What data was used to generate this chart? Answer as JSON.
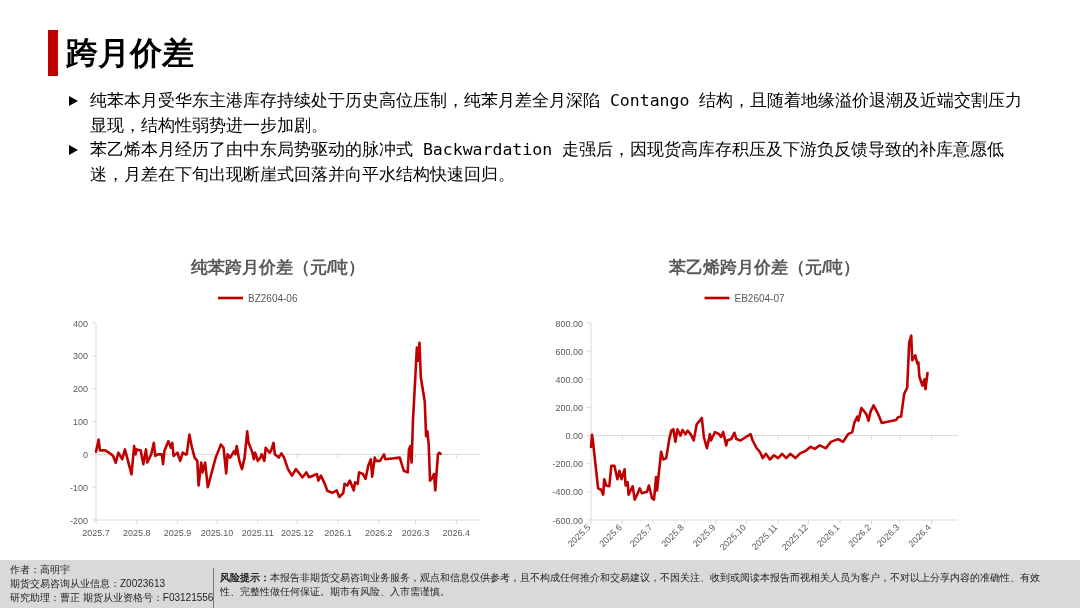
{
  "chart_data": [
    {
      "type": "other",
      "title": "跨月价差",
      "annotations": [
        "纯苯本月受华东主港库存持续处于历史高位压制，纯苯月差全月深陷 Contango 结构，且随着地缘溢价退潮及近端交割压力显现，结构性弱势进一步加剧。",
        "苯乙烯本月经历了由中东局势驱动的脉冲式 Backwardation 走强后，因现货高库存积压及下游负反馈导致的补库意愿低迷，月差在下旬出现断崖式回落并向平水结构快速回归。"
      ]
    },
    {
      "type": "line",
      "title": "纯苯跨月价差（元/吨）",
      "legend": "top",
      "marker": "none",
      "line_style": "solid",
      "x": [
        "2025-07-01",
        "2025-07-03",
        "2025-07-04",
        "2025-07-08",
        "2025-07-12",
        "2025-07-14",
        "2025-07-16",
        "2025-07-18",
        "2025-07-21",
        "2025-07-23",
        "2025-07-28",
        "2025-07-30",
        "2025-07-31",
        "2025-08-01",
        "2025-08-04",
        "2025-08-06",
        "2025-08-08",
        "2025-08-09",
        "2025-08-12",
        "2025-08-14",
        "2025-08-15",
        "2025-08-17",
        "2025-08-20",
        "2025-08-21",
        "2025-08-22",
        "2025-08-25",
        "2025-08-27",
        "2025-08-28",
        "2025-08-29",
        "2025-09-01",
        "2025-09-03",
        "2025-09-05",
        "2025-09-07",
        "2025-09-08",
        "2025-09-10",
        "2025-09-12",
        "2025-09-14",
        "2025-09-16",
        "2025-09-17",
        "2025-09-19",
        "2025-09-20",
        "2025-09-22",
        "2025-09-24",
        "2025-09-27",
        "2025-09-30",
        "2025-10-04",
        "2025-10-06",
        "2025-10-08",
        "2025-10-09",
        "2025-10-11",
        "2025-10-14",
        "2025-10-15",
        "2025-10-16",
        "2025-10-18",
        "2025-10-20",
        "2025-10-22",
        "2025-10-24",
        "2025-10-25",
        "2025-10-28",
        "2025-10-29",
        "2025-10-30",
        "2025-11-01",
        "2025-11-03",
        "2025-11-04",
        "2025-11-06",
        "2025-11-07",
        "2025-11-10",
        "2025-11-11",
        "2025-11-13",
        "2025-11-14",
        "2025-11-17",
        "2025-11-19",
        "2025-11-21",
        "2025-11-24",
        "2025-11-27",
        "2025-11-30",
        "2025-12-03",
        "2025-12-05",
        "2025-12-08",
        "2025-12-10",
        "2025-12-13",
        "2025-12-16",
        "2025-12-17",
        "2025-12-19",
        "2025-12-22",
        "2025-12-24",
        "2025-12-28",
        "2025-12-31",
        "2026-01-02",
        "2026-01-05",
        "2026-01-06",
        "2026-01-08",
        "2026-01-10",
        "2026-01-13",
        "2026-01-14",
        "2026-01-16",
        "2026-01-17",
        "2026-01-20",
        "2026-01-22",
        "2026-01-24",
        "2026-01-26",
        "2026-01-27",
        "2026-01-29",
        "2026-01-30",
        "2026-02-02",
        "2026-02-05",
        "2026-02-06",
        "2026-02-17",
        "2026-02-20",
        "2026-02-23",
        "2026-02-24",
        "2026-02-25",
        "2026-02-26",
        "2026-02-27",
        "2026-03-02",
        "2026-03-03",
        "2026-03-04",
        "2026-03-05",
        "2026-03-08",
        "2026-03-09",
        "2026-03-10",
        "2026-03-11",
        "2026-03-12",
        "2026-03-14",
        "2026-03-15",
        "2026-03-16",
        "2026-03-18",
        "2026-03-19",
        "2026-03-20"
      ],
      "series": [
        {
          "name": "BZ2604-06",
          "color": "#c00000",
          "values": [
            8,
            45,
            12,
            12,
            2,
            -5,
            -26,
            5,
            -15,
            15,
            -61,
            25,
            0,
            15,
            12,
            -30,
            15,
            -25,
            0,
            35,
            -5,
            0,
            0,
            -30,
            10,
            40,
            20,
            35,
            -5,
            5,
            -20,
            5,
            0,
            0,
            60,
            20,
            -10,
            -20,
            -95,
            -25,
            -55,
            -25,
            -100,
            -55,
            -10,
            30,
            20,
            -58,
            0,
            -10,
            10,
            0,
            25,
            -20,
            -45,
            -10,
            70,
            35,
            5,
            -15,
            5,
            -20,
            -10,
            0,
            -20,
            20,
            5,
            10,
            35,
            0,
            -10,
            3,
            -10,
            -45,
            -65,
            -45,
            -60,
            -70,
            -55,
            -70,
            -65,
            -60,
            -80,
            -65,
            -90,
            -112,
            -117,
            -110,
            -130,
            -118,
            -90,
            -95,
            -80,
            -110,
            -85,
            -90,
            -55,
            -60,
            -75,
            -35,
            -15,
            -68,
            -10,
            -20,
            -20,
            0,
            -15,
            -10,
            -50,
            -55,
            15,
            25,
            -25,
            100,
            325,
            285,
            340,
            235,
            160,
            55,
            70,
            30,
            -80,
            -70,
            -60,
            -110,
            0,
            5,
            2
          ]
        }
      ],
      "xlim": [
        "2025-07-01",
        "2026-04-19"
      ],
      "xticks": [
        {
          "value": "2025-07-01",
          "label": "2025.7"
        },
        {
          "value": "2025-08-01",
          "label": "2025.8"
        },
        {
          "value": "2025-09-01",
          "label": "2025.9"
        },
        {
          "value": "2025-10-01",
          "label": "2025.10"
        },
        {
          "value": "2025-11-01",
          "label": "2025.11"
        },
        {
          "value": "2025-12-01",
          "label": "2025.12"
        },
        {
          "value": "2026-01-01",
          "label": "2026.1"
        },
        {
          "value": "2026-02-01",
          "label": "2026.2"
        },
        {
          "value": "2026-03-01",
          "label": "2026.3"
        },
        {
          "value": "2026-04-01",
          "label": "2026.4"
        }
      ],
      "ylim": [
        -200,
        400
      ],
      "yticks": [
        -200,
        -100,
        0,
        100,
        200,
        300,
        400
      ]
    },
    {
      "type": "line",
      "title": "苯乙烯跨月价差（元/吨）",
      "legend": "top",
      "marker": "none",
      "line_style": "solid",
      "x": [
        "2025-05-01",
        "2025-05-02",
        "2025-05-03",
        "2025-05-05",
        "2025-05-08",
        "2025-05-11",
        "2025-05-13",
        "2025-05-14",
        "2025-05-16",
        "2025-05-19",
        "2025-05-21",
        "2025-05-24",
        "2025-05-27",
        "2025-05-29",
        "2025-05-31",
        "2025-06-03",
        "2025-06-04",
        "2025-06-06",
        "2025-06-07",
        "2025-06-11",
        "2025-06-13",
        "2025-06-16",
        "2025-06-18",
        "2025-06-20",
        "2025-06-25",
        "2025-06-27",
        "2025-06-30",
        "2025-07-02",
        "2025-07-04",
        "2025-07-05",
        "2025-07-07",
        "2025-07-09",
        "2025-07-11",
        "2025-07-14",
        "2025-07-17",
        "2025-07-19",
        "2025-07-21",
        "2025-07-23",
        "2025-07-25",
        "2025-07-28",
        "2025-07-30",
        "2025-08-02",
        "2025-08-04",
        "2025-08-07",
        "2025-08-10",
        "2025-08-13",
        "2025-08-18",
        "2025-08-20",
        "2025-08-23",
        "2025-08-26",
        "2025-08-27",
        "2025-08-31",
        "2025-09-04",
        "2025-09-06",
        "2025-09-08",
        "2025-09-11",
        "2025-09-12",
        "2025-09-16",
        "2025-09-19",
        "2025-09-21",
        "2025-09-25",
        "2025-10-05",
        "2025-10-07",
        "2025-10-11",
        "2025-10-14",
        "2025-10-17",
        "2025-10-20",
        "2025-10-24",
        "2025-10-28",
        "2025-11-01",
        "2025-11-05",
        "2025-11-09",
        "2025-11-13",
        "2025-11-18",
        "2025-11-23",
        "2025-11-28",
        "2025-12-03",
        "2025-12-07",
        "2025-12-12",
        "2025-12-15",
        "2025-12-18",
        "2025-12-23",
        "2025-12-30",
        "2026-01-04",
        "2026-01-09",
        "2026-01-13",
        "2026-01-15",
        "2026-01-18",
        "2026-01-19",
        "2026-01-22",
        "2026-01-25",
        "2026-01-27",
        "2026-01-29",
        "2026-01-31",
        "2026-02-03",
        "2026-02-07",
        "2026-02-11",
        "2026-02-25",
        "2026-02-27",
        "2026-03-02",
        "2026-03-05",
        "2026-03-08",
        "2026-03-10",
        "2026-03-12",
        "2026-03-13",
        "2026-03-16",
        "2026-03-18",
        "2026-03-19",
        "2026-03-20",
        "2026-03-23",
        "2026-03-25",
        "2026-03-26",
        "2026-03-28"
      ],
      "series": [
        {
          "name": "EB2604-07",
          "color": "#c00000",
          "values": [
            -80,
            5,
            -45,
            -180,
            -375,
            -385,
            -420,
            -310,
            -355,
            -360,
            -215,
            -215,
            -310,
            -250,
            -310,
            -240,
            -355,
            -330,
            -420,
            -360,
            -455,
            -410,
            -375,
            -410,
            -400,
            -355,
            -445,
            -455,
            -295,
            -390,
            -250,
            -115,
            -170,
            -160,
            -25,
            35,
            45,
            -45,
            45,
            0,
            40,
            10,
            35,
            10,
            -35,
            80,
            125,
            -10,
            -90,
            10,
            -35,
            25,
            10,
            -10,
            25,
            -70,
            -35,
            -25,
            20,
            -25,
            -35,
            10,
            -35,
            -90,
            -115,
            -160,
            -130,
            -170,
            -140,
            -160,
            -130,
            -160,
            -130,
            -160,
            -125,
            -110,
            -80,
            -95,
            -70,
            -80,
            -90,
            -45,
            -25,
            -45,
            10,
            25,
            90,
            135,
            105,
            195,
            170,
            150,
            105,
            170,
            215,
            160,
            90,
            110,
            130,
            135,
            295,
            340,
            660,
            710,
            535,
            570,
            510,
            520,
            420,
            355,
            400,
            330,
            445
          ]
        }
      ],
      "xlim": [
        "2025-05-01",
        "2026-04-27"
      ],
      "xticks": [
        {
          "value": "2025-05-01",
          "label": "2025.5"
        },
        {
          "value": "2025-06-01",
          "label": "2025.6"
        },
        {
          "value": "2025-07-01",
          "label": "2025.7"
        },
        {
          "value": "2025-08-01",
          "label": "2025.8"
        },
        {
          "value": "2025-09-01",
          "label": "2025.9"
        },
        {
          "value": "2025-10-01",
          "label": "2025.10"
        },
        {
          "value": "2025-11-01",
          "label": "2025.11"
        },
        {
          "value": "2025-12-01",
          "label": "2025.12"
        },
        {
          "value": "2026-01-01",
          "label": "2026.1"
        },
        {
          "value": "2026-02-01",
          "label": "2026.2"
        },
        {
          "value": "2026-03-01",
          "label": "2026.3"
        },
        {
          "value": "2026-04-01",
          "label": "2026.4"
        }
      ],
      "ylim": [
        -600,
        800
      ],
      "yticks": [
        {
          "value": -600,
          "label": "-600.00"
        },
        {
          "value": -400,
          "label": "-400.00"
        },
        {
          "value": -200,
          "label": "-200.00"
        },
        {
          "value": 0,
          "label": "0.00"
        },
        {
          "value": 200,
          "label": "200.00"
        },
        {
          "value": 400,
          "label": "400.00"
        },
        {
          "value": 600,
          "label": "600.00"
        },
        {
          "value": 800,
          "label": "800.00"
        }
      ]
    },
    {
      "type": "other",
      "annotations": [
        "作者：高明宇",
        "期货交易咨询从业信息：Z0023613",
        "研究助理：曹正 期货从业资格号：F03121556",
        "**风险提示：**本报告非期货交易咨询业务服务，观点和信息仅供参考，且不构成任何推介和交易建议，不因关注、收到或阅读本报告而视相关人员为客户，不对以上分享内容的准确性、有效性、完整性做任何保证。期市有风险、入市需谨慎。"
      ]
    }
  ]
}
